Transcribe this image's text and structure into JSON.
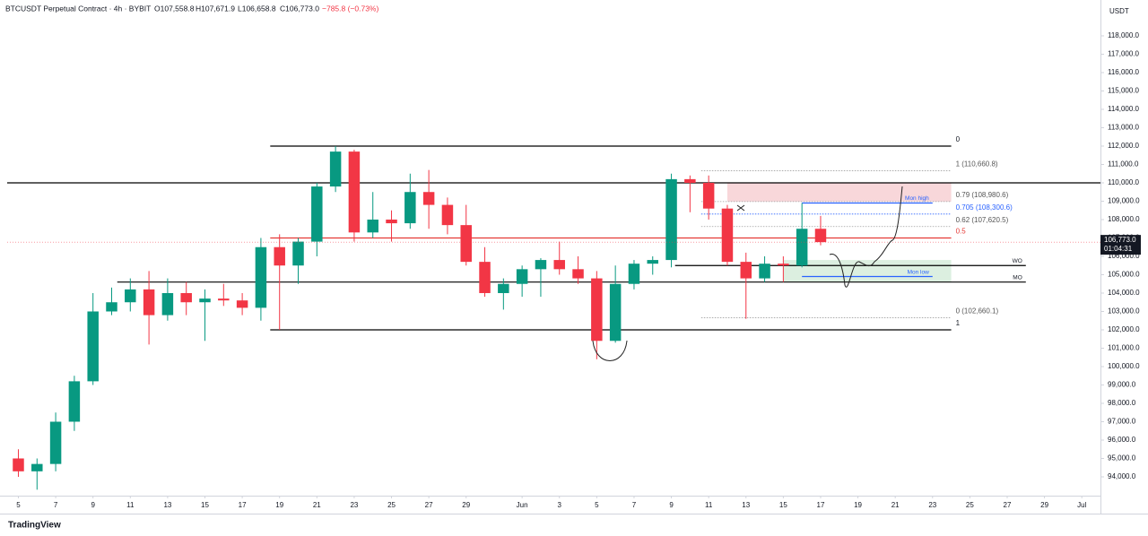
{
  "chart_data": {
    "type": "candlestick",
    "header": {
      "symbol": "BTCUSDT Perpetual Contract · 4h · BYBIT",
      "open": "O107,558.8",
      "high": "H107,671.9",
      "low": "L106,658.8",
      "close": "C106,773.0",
      "change": "−785.8 (−0.73%)"
    },
    "currency": "USDT",
    "brand": "TradingView",
    "last_price": {
      "value": 106773,
      "label": "106,773.0",
      "countdown": "01:04:31"
    },
    "x": [
      0,
      1,
      2,
      3,
      4,
      5,
      6,
      7,
      8,
      9,
      10,
      11,
      12,
      13,
      14,
      15,
      16,
      17,
      18,
      19,
      20,
      21,
      22,
      23,
      24,
      25,
      26,
      27,
      28,
      29,
      30,
      31,
      32,
      33,
      34,
      35,
      36,
      37,
      38,
      39,
      40,
      41,
      42,
      43
    ],
    "open": [
      95000,
      94300,
      94700,
      97000,
      99200,
      103000,
      103500,
      104200,
      102800,
      104000,
      103500,
      103700,
      103600,
      103200,
      106500,
      105500,
      106800,
      109800,
      111700,
      107300,
      108000,
      107800,
      109500,
      108800,
      107700,
      105700,
      104000,
      104500,
      105300,
      105800,
      105300,
      104800,
      101400,
      104500,
      105600,
      105800,
      110200,
      110000,
      108600,
      105700,
      104800,
      105600,
      105500,
      107500
    ],
    "high": [
      95500,
      95000,
      97500,
      99500,
      104000,
      104300,
      104800,
      105200,
      104800,
      104600,
      104200,
      104500,
      104000,
      107000,
      107200,
      107000,
      110000,
      112000,
      111800,
      109500,
      108500,
      110500,
      110700,
      109200,
      108800,
      106500,
      104800,
      105500,
      105900,
      106800,
      106000,
      105200,
      105500,
      105800,
      106000,
      110500,
      110400,
      110400,
      108800,
      106200,
      106000,
      106000,
      108900,
      108200
    ],
    "low": [
      94000,
      93300,
      94300,
      96500,
      99000,
      102800,
      103000,
      101200,
      102500,
      102800,
      101400,
      103300,
      102800,
      102500,
      102000,
      104500,
      106000,
      109500,
      106800,
      107000,
      106800,
      107500,
      107500,
      107200,
      105500,
      103800,
      103100,
      103800,
      103800,
      105000,
      104500,
      100400,
      101300,
      104200,
      105000,
      105400,
      108400,
      108000,
      105500,
      102600,
      104600,
      104600,
      105400,
      106600
    ],
    "close": [
      94300,
      94700,
      97000,
      99200,
      103000,
      103500,
      104200,
      102800,
      104000,
      103500,
      103700,
      103600,
      103200,
      106500,
      105500,
      106800,
      109800,
      111700,
      107300,
      108000,
      107800,
      109500,
      108800,
      107700,
      105700,
      104000,
      104500,
      105300,
      105800,
      105300,
      104800,
      101400,
      104500,
      105600,
      105800,
      110200,
      110000,
      108600,
      105700,
      104800,
      105600,
      105500,
      107500,
      106773
    ],
    "up_color": "#089981",
    "down_color": "#f23645",
    "xlim": [
      -0.6,
      58
    ],
    "xticks": [
      {
        "value": 0,
        "label": "5"
      },
      {
        "value": 2,
        "label": "7"
      },
      {
        "value": 4,
        "label": "9"
      },
      {
        "value": 6,
        "label": "11"
      },
      {
        "value": 8,
        "label": "13"
      },
      {
        "value": 10,
        "label": "15"
      },
      {
        "value": 12,
        "label": "17"
      },
      {
        "value": 14,
        "label": "19"
      },
      {
        "value": 16,
        "label": "21"
      },
      {
        "value": 18,
        "label": "23"
      },
      {
        "value": 20,
        "label": "25"
      },
      {
        "value": 22,
        "label": "27"
      },
      {
        "value": 24,
        "label": "29"
      },
      {
        "value": 27,
        "label": "Jun"
      },
      {
        "value": 29,
        "label": "3"
      },
      {
        "value": 31,
        "label": "5"
      },
      {
        "value": 33,
        "label": "7"
      },
      {
        "value": 35,
        "label": "9"
      },
      {
        "value": 37,
        "label": "11"
      },
      {
        "value": 39,
        "label": "13"
      },
      {
        "value": 41,
        "label": "15"
      },
      {
        "value": 43,
        "label": "17"
      },
      {
        "value": 45,
        "label": "19"
      },
      {
        "value": 47,
        "label": "21"
      },
      {
        "value": 49,
        "label": "23"
      },
      {
        "value": 51,
        "label": "25"
      },
      {
        "value": 53,
        "label": "27"
      },
      {
        "value": 55,
        "label": "29"
      },
      {
        "value": 57,
        "label": "Jul"
      }
    ],
    "ylim": [
      92975,
      119950
    ],
    "yticks": [
      {
        "value": 94000,
        "label": "94,000.0"
      },
      {
        "value": 95000,
        "label": "95,000.0"
      },
      {
        "value": 96000,
        "label": "96,000.0"
      },
      {
        "value": 97000,
        "label": "97,000.0"
      },
      {
        "value": 98000,
        "label": "98,000.0"
      },
      {
        "value": 99000,
        "label": "99,000.0"
      },
      {
        "value": 100000,
        "label": "100,000.0"
      },
      {
        "value": 101000,
        "label": "101,000.0"
      },
      {
        "value": 102000,
        "label": "102,000.0"
      },
      {
        "value": 103000,
        "label": "103,000.0"
      },
      {
        "value": 104000,
        "label": "104,000.0"
      },
      {
        "value": 105000,
        "label": "105,000.0"
      },
      {
        "value": 106000,
        "label": "106,000.0"
      },
      {
        "value": 107000,
        "label": "107,000.0"
      },
      {
        "value": 108000,
        "label": "108,000.0"
      },
      {
        "value": 109000,
        "label": "109,000.0"
      },
      {
        "value": 110000,
        "label": "110,000.0"
      },
      {
        "value": 111000,
        "label": "111,000.0"
      },
      {
        "value": 112000,
        "label": "112,000.0"
      },
      {
        "value": 113000,
        "label": "113,000.0"
      },
      {
        "value": 114000,
        "label": "114,000.0"
      },
      {
        "value": 115000,
        "label": "115,000.0"
      },
      {
        "value": 116000,
        "label": "116,000.0"
      },
      {
        "value": 117000,
        "label": "117,000.0"
      },
      {
        "value": 118000,
        "label": "118,000.0"
      }
    ],
    "zones": [
      {
        "from": 38,
        "to": 50,
        "low": 108980.6,
        "high": 110000,
        "color": "#f8d7da"
      },
      {
        "from": 41,
        "to": 50,
        "low": 104600,
        "high": 105800,
        "color": "#dcefe0"
      }
    ],
    "levels": [
      {
        "label": "0",
        "value": 112000,
        "from": 13.5,
        "to": 50,
        "color": "#000000",
        "dashed": false,
        "label_at": "right"
      },
      {
        "label": "1 (110,660.8)",
        "value": 110660.8,
        "from": 36.6,
        "to": 50,
        "color": "#9e9e9e",
        "dashed": true,
        "label_at": "right"
      },
      {
        "value": 110000,
        "from": -0.6,
        "to": 58,
        "color": "#000000",
        "dashed": false
      },
      {
        "label": "0.79 (108,980.6)",
        "value": 108980.6,
        "from": 36.6,
        "to": 50,
        "color": "#9e9e9e",
        "dashed": true,
        "label_at": "right"
      },
      {
        "label": "0.705 (108,300.6)",
        "value": 108300.6,
        "from": 36.6,
        "to": 50,
        "color": "#2962ff",
        "dashed": true,
        "label_at": "right"
      },
      {
        "label": "0.62 (107,620.5)",
        "value": 107620.5,
        "from": 36.6,
        "to": 50,
        "color": "#9e9e9e",
        "dashed": true,
        "label_at": "right"
      },
      {
        "label": "0.5",
        "value": 107000,
        "from": 13.5,
        "to": 50,
        "color": "#e53935",
        "dashed": false,
        "label_at": "right"
      },
      {
        "label": "WO",
        "value": 105500,
        "from": 35.2,
        "to": 54,
        "color": "#000000",
        "dashed": false,
        "label_at": "inside"
      },
      {
        "label": "MO",
        "value": 104600,
        "from": 5.3,
        "to": 54,
        "color": "#000000",
        "dashed": false,
        "label_at": "inside"
      },
      {
        "label": "0 (102,660.1)",
        "value": 102660.1,
        "from": 36.6,
        "to": 50,
        "color": "#9e9e9e",
        "dashed": true,
        "label_at": "right"
      },
      {
        "label": "1",
        "value": 102000,
        "from": 13.5,
        "to": 50,
        "color": "#000000",
        "dashed": false,
        "label_at": "right"
      },
      {
        "label": "Mon high",
        "value": 108900,
        "from": 42,
        "to": 49,
        "color": "#2962ff",
        "dashed": false,
        "label_at": "inside"
      },
      {
        "label": "Mon low",
        "value": 104900,
        "from": 42,
        "to": 49,
        "color": "#2962ff",
        "dashed": false,
        "label_at": "inside"
      }
    ]
  }
}
